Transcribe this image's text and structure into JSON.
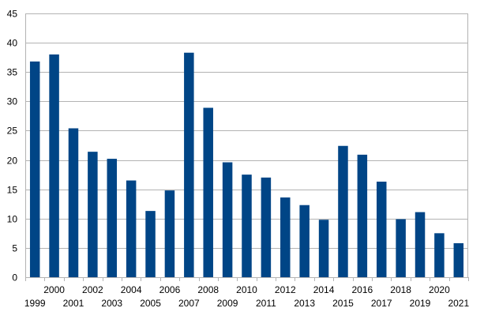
{
  "chart_data": {
    "type": "bar",
    "title": "",
    "xlabel": "",
    "ylabel": "",
    "ylim": [
      0,
      45
    ],
    "yticks": [
      0,
      5,
      10,
      15,
      20,
      25,
      30,
      35,
      40,
      45
    ],
    "grid": true,
    "legend": "none",
    "categories": [
      "1999",
      "2000",
      "2001",
      "2002",
      "2003",
      "2004",
      "2005",
      "2006",
      "2007",
      "2008",
      "2009",
      "2010",
      "2011",
      "2012",
      "2013",
      "2014",
      "2015",
      "2016",
      "2017",
      "2018",
      "2019",
      "2020",
      "2021"
    ],
    "values": [
      36.8,
      38.0,
      25.4,
      21.4,
      20.2,
      16.5,
      11.3,
      14.8,
      38.3,
      28.9,
      19.6,
      17.5,
      17.0,
      13.6,
      12.3,
      9.8,
      22.4,
      20.9,
      16.3,
      9.9,
      11.1,
      7.5,
      5.8
    ],
    "colors": {
      "bar": "#004586",
      "grid": "#b3b3b3",
      "axis": "#b3b3b3"
    }
  }
}
